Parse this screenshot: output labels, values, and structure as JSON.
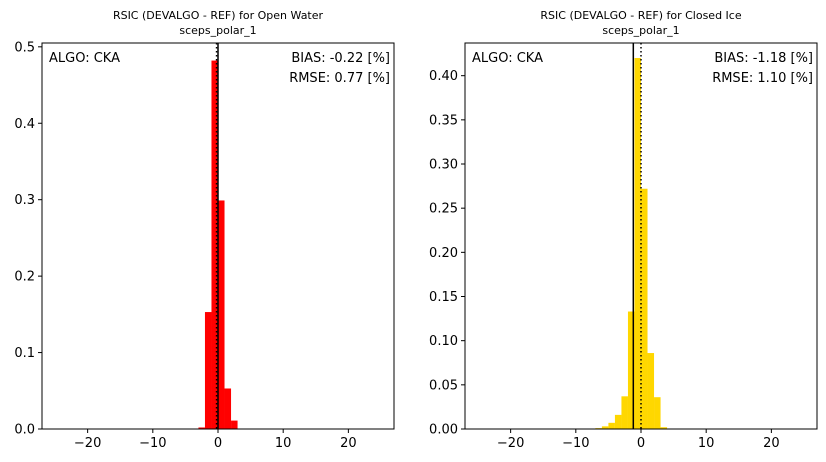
{
  "chart_data": [
    {
      "type": "bar",
      "title": "RSIC (DEVALGO - REF) for Open Water",
      "subtitle": "sceps_polar_1",
      "xlabel": "",
      "ylabel": "",
      "xlim": [
        -27,
        27
      ],
      "ylim": [
        0,
        0.505
      ],
      "xticks": [
        -20,
        -10,
        0,
        10,
        20
      ],
      "yticks": [
        0.0,
        0.1,
        0.2,
        0.3,
        0.4,
        0.5
      ],
      "ytick_labels": [
        "0.0",
        "0.1",
        "0.2",
        "0.3",
        "0.4",
        "0.5"
      ],
      "bar_color": "#ff0000",
      "bin_width": 1,
      "bins": [
        {
          "x0": -3,
          "value": 0.002
        },
        {
          "x0": -2,
          "value": 0.153
        },
        {
          "x0": -1,
          "value": 0.482
        },
        {
          "x0": 0,
          "value": 0.299
        },
        {
          "x0": 1,
          "value": 0.053
        },
        {
          "x0": 2,
          "value": 0.011
        }
      ],
      "vline_solid": 0.0,
      "vline_dotted": -0.22,
      "annotations": {
        "algo": "ALGO: CKA",
        "bias": "BIAS: -0.22 [%]",
        "rmse": "RMSE: 0.77 [%]"
      }
    },
    {
      "type": "bar",
      "title": "RSIC (DEVALGO - REF) for Closed Ice",
      "subtitle": "sceps_polar_1",
      "xlabel": "",
      "ylabel": "",
      "xlim": [
        -27,
        27
      ],
      "ylim": [
        0,
        0.437
      ],
      "xticks": [
        -20,
        -10,
        0,
        10,
        20
      ],
      "yticks": [
        0.0,
        0.05,
        0.1,
        0.15,
        0.2,
        0.25,
        0.3,
        0.35,
        0.4
      ],
      "ytick_labels": [
        "0.00",
        "0.05",
        "0.10",
        "0.15",
        "0.20",
        "0.25",
        "0.30",
        "0.35",
        "0.40"
      ],
      "bar_color": "#ffd700",
      "bin_width": 1,
      "bins": [
        {
          "x0": -7,
          "value": 0.001
        },
        {
          "x0": -6,
          "value": 0.003
        },
        {
          "x0": -5,
          "value": 0.007
        },
        {
          "x0": -4,
          "value": 0.016
        },
        {
          "x0": -3,
          "value": 0.037
        },
        {
          "x0": -2,
          "value": 0.133
        },
        {
          "x0": -1,
          "value": 0.42
        },
        {
          "x0": 0,
          "value": 0.272
        },
        {
          "x0": 1,
          "value": 0.086
        },
        {
          "x0": 2,
          "value": 0.036
        },
        {
          "x0": 3,
          "value": 0.002
        }
      ],
      "vline_solid": -1.18,
      "vline_dotted": 0.0,
      "annotations": {
        "algo": "ALGO: CKA",
        "bias": "BIAS: -1.18 [%]",
        "rmse": "RMSE: 1.10 [%]"
      }
    }
  ]
}
